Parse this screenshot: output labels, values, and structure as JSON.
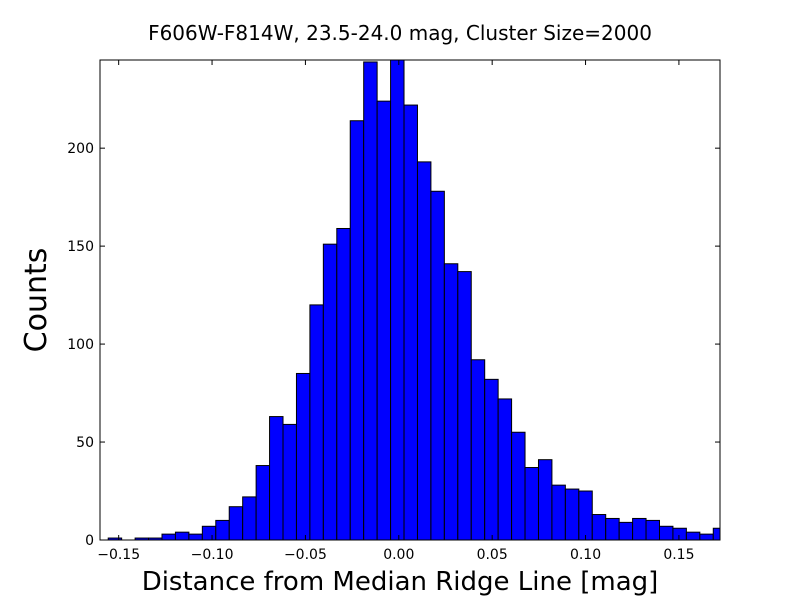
{
  "chart_data": {
    "type": "bar",
    "title": "F606W-F814W, 23.5-24.0 mag, Cluster Size=2000",
    "xlabel": "Distance from Median Ridge Line [mag]",
    "ylabel": "Counts",
    "xlim": [
      -0.16,
      0.172
    ],
    "ylim": [
      0,
      245
    ],
    "grid": false,
    "bar_color": "#0000ff",
    "edge_color": "#000000",
    "x_ticks": [
      {
        "value": -0.15,
        "label": "−0.15"
      },
      {
        "value": -0.1,
        "label": "−0.10"
      },
      {
        "value": -0.05,
        "label": "−0.05"
      },
      {
        "value": 0.0,
        "label": "0.00"
      },
      {
        "value": 0.05,
        "label": "0.05"
      },
      {
        "value": 0.1,
        "label": "0.10"
      },
      {
        "value": 0.15,
        "label": "0.15"
      }
    ],
    "y_ticks": [
      {
        "value": 0,
        "label": "0"
      },
      {
        "value": 50,
        "label": "50"
      },
      {
        "value": 100,
        "label": "100"
      },
      {
        "value": 150,
        "label": "150"
      },
      {
        "value": 200,
        "label": "200"
      }
    ],
    "bins": [
      {
        "x0": -0.1556,
        "x1": -0.1484,
        "value": 1
      },
      {
        "x0": -0.1484,
        "x1": -0.1412,
        "value": 0
      },
      {
        "x0": -0.1412,
        "x1": -0.134,
        "value": 1
      },
      {
        "x0": -0.134,
        "x1": -0.1268,
        "value": 1
      },
      {
        "x0": -0.1268,
        "x1": -0.1196,
        "value": 3
      },
      {
        "x0": -0.1196,
        "x1": -0.1124,
        "value": 4
      },
      {
        "x0": -0.1124,
        "x1": -0.1052,
        "value": 3
      },
      {
        "x0": -0.1052,
        "x1": -0.098,
        "value": 7
      },
      {
        "x0": -0.098,
        "x1": -0.0908,
        "value": 10
      },
      {
        "x0": -0.0908,
        "x1": -0.0836,
        "value": 17
      },
      {
        "x0": -0.0836,
        "x1": -0.0764,
        "value": 22
      },
      {
        "x0": -0.0764,
        "x1": -0.0692,
        "value": 38
      },
      {
        "x0": -0.0692,
        "x1": -0.062,
        "value": 63
      },
      {
        "x0": -0.062,
        "x1": -0.0548,
        "value": 59
      },
      {
        "x0": -0.0548,
        "x1": -0.0476,
        "value": 85
      },
      {
        "x0": -0.0476,
        "x1": -0.0404,
        "value": 120
      },
      {
        "x0": -0.0404,
        "x1": -0.0332,
        "value": 151
      },
      {
        "x0": -0.0332,
        "x1": -0.026,
        "value": 159
      },
      {
        "x0": -0.026,
        "x1": -0.0188,
        "value": 214
      },
      {
        "x0": -0.0188,
        "x1": -0.0116,
        "value": 244
      },
      {
        "x0": -0.0116,
        "x1": -0.0044,
        "value": 224
      },
      {
        "x0": -0.0044,
        "x1": 0.0028,
        "value": 245
      },
      {
        "x0": 0.0028,
        "x1": 0.01,
        "value": 222
      },
      {
        "x0": 0.01,
        "x1": 0.0172,
        "value": 193
      },
      {
        "x0": 0.0172,
        "x1": 0.0244,
        "value": 178
      },
      {
        "x0": 0.0244,
        "x1": 0.0316,
        "value": 141
      },
      {
        "x0": 0.0316,
        "x1": 0.0388,
        "value": 137
      },
      {
        "x0": 0.0388,
        "x1": 0.046,
        "value": 92
      },
      {
        "x0": 0.046,
        "x1": 0.0532,
        "value": 82
      },
      {
        "x0": 0.0532,
        "x1": 0.0604,
        "value": 72
      },
      {
        "x0": 0.0604,
        "x1": 0.0676,
        "value": 55
      },
      {
        "x0": 0.0676,
        "x1": 0.0748,
        "value": 37
      },
      {
        "x0": 0.0748,
        "x1": 0.082,
        "value": 41
      },
      {
        "x0": 0.082,
        "x1": 0.0892,
        "value": 28
      },
      {
        "x0": 0.0892,
        "x1": 0.0964,
        "value": 26
      },
      {
        "x0": 0.0964,
        "x1": 0.1036,
        "value": 25
      },
      {
        "x0": 0.1036,
        "x1": 0.1108,
        "value": 13
      },
      {
        "x0": 0.1108,
        "x1": 0.118,
        "value": 11
      },
      {
        "x0": 0.118,
        "x1": 0.1252,
        "value": 9
      },
      {
        "x0": 0.1252,
        "x1": 0.1324,
        "value": 11
      },
      {
        "x0": 0.1324,
        "x1": 0.1396,
        "value": 10
      },
      {
        "x0": 0.1396,
        "x1": 0.1468,
        "value": 7
      },
      {
        "x0": 0.1468,
        "x1": 0.154,
        "value": 6
      },
      {
        "x0": 0.154,
        "x1": 0.1612,
        "value": 4
      },
      {
        "x0": 0.1612,
        "x1": 0.1684,
        "value": 3
      },
      {
        "x0": 0.1684,
        "x1": 0.1756,
        "value": 6
      }
    ]
  }
}
